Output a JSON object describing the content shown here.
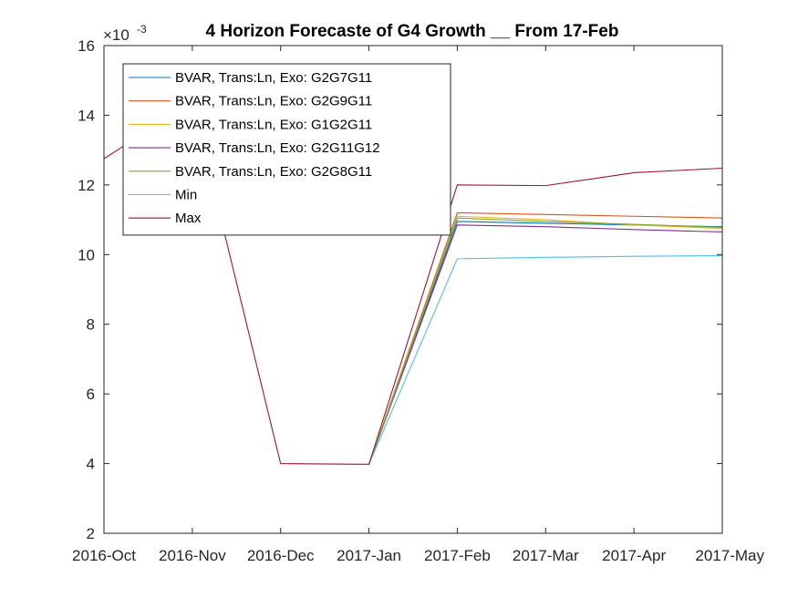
{
  "chart_data": {
    "type": "line",
    "title": "4 Horizon Forecaste of G4 Growth __ From 17-Feb",
    "y_exponent_label": "×10",
    "y_exponent_power": "-3",
    "categories": [
      "2016-Oct",
      "2016-Nov",
      "2016-Dec",
      "2017-Jan",
      "2017-Feb",
      "2017-Mar",
      "2017-Apr",
      "2017-May"
    ],
    "xlim": [
      0,
      7
    ],
    "ylim": [
      2,
      16
    ],
    "yticks": [
      2,
      4,
      6,
      8,
      10,
      12,
      14,
      16
    ],
    "grid": false,
    "legend_location": "top-left",
    "series": [
      {
        "name": "BVAR, Trans:Ln, Exo: G2G7G11",
        "color": "#0072BD",
        "x": [
          3,
          4,
          5,
          6,
          7
        ],
        "values": [
          3.98,
          10.95,
          10.9,
          10.85,
          10.8
        ]
      },
      {
        "name": "BVAR, Trans:Ln, Exo: G2G9G11",
        "color": "#D95319",
        "x": [
          3,
          4,
          5,
          6,
          7
        ],
        "values": [
          3.98,
          11.2,
          11.15,
          11.1,
          11.05
        ]
      },
      {
        "name": "BVAR, Trans:Ln, Exo: G1G2G11",
        "color": "#EDB120",
        "x": [
          3,
          4,
          5,
          6,
          7
        ],
        "values": [
          3.98,
          11.1,
          11.0,
          10.85,
          10.75
        ]
      },
      {
        "name": "BVAR, Trans:Ln, Exo: G2G11G12",
        "color": "#7E2F8E",
        "x": [
          3,
          4,
          5,
          6,
          7
        ],
        "values": [
          3.98,
          10.85,
          10.8,
          10.72,
          10.65
        ]
      },
      {
        "name": "BVAR, Trans:Ln, Exo: G2G8G11",
        "color": "#77AC30",
        "x": [
          3,
          4,
          5,
          6,
          7
        ],
        "values": [
          3.98,
          11.05,
          10.95,
          10.87,
          10.78
        ]
      },
      {
        "name": "Min",
        "color": "#4DBEEE",
        "x": [
          3,
          4,
          5,
          6,
          7
        ],
        "values": [
          3.98,
          9.88,
          9.92,
          9.95,
          9.97
        ]
      },
      {
        "name": "Max",
        "color": "#A2142F",
        "x": [
          0,
          1,
          2,
          3,
          4,
          5,
          6,
          7
        ],
        "values": [
          12.75,
          14.4,
          4.0,
          3.98,
          12.0,
          11.98,
          12.35,
          12.48
        ]
      }
    ]
  }
}
